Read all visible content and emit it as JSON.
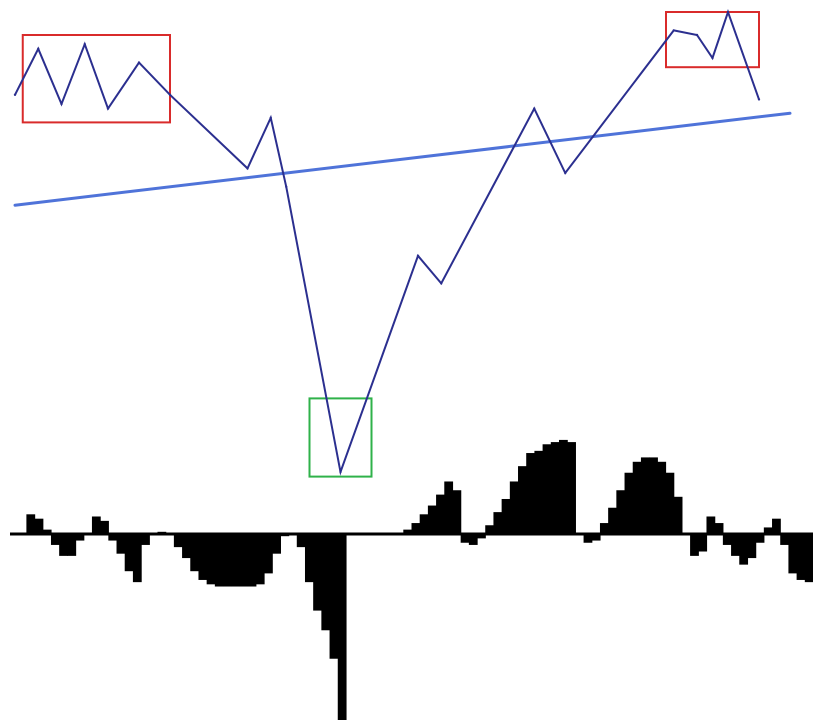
{
  "chart_data": [
    {
      "type": "line",
      "title": "",
      "xlabel": "",
      "ylabel": "",
      "grid": false,
      "legend": "none",
      "series": [
        {
          "color": "#2b2f8f",
          "points": [
            [
              0,
              82
            ],
            [
              3,
              92
            ],
            [
              6,
              80
            ],
            [
              9,
              93
            ],
            [
              12,
              79
            ],
            [
              16,
              89
            ],
            [
              20,
              82
            ],
            [
              30,
              66
            ],
            [
              33,
              77
            ],
            [
              35,
              62
            ],
            [
              42,
              0
            ],
            [
              52,
              47
            ],
            [
              55,
              41
            ],
            [
              67,
              79
            ],
            [
              71,
              65
            ],
            [
              85,
              96
            ],
            [
              88,
              95
            ],
            [
              90,
              90
            ],
            [
              92,
              100
            ],
            [
              96,
              81
            ]
          ]
        }
      ],
      "trendline": {
        "color": "#4f73d9",
        "start": [
          0,
          58
        ],
        "end": [
          100,
          78
        ]
      },
      "highlight_boxes": [
        {
          "kind": "top-left-zone",
          "color": "#d92b2b",
          "x0": 1,
          "x1": 20,
          "y0": 76,
          "y1": 95
        },
        {
          "kind": "bottom-zone",
          "color": "#2fb24a",
          "x0": 38,
          "x1": 46,
          "y0": -1,
          "y1": 16
        },
        {
          "kind": "top-right-zone",
          "color": "#d92b2b",
          "x0": 84,
          "x1": 96,
          "y0": 88,
          "y1": 100
        }
      ]
    },
    {
      "type": "area",
      "title": "",
      "xlabel": "",
      "ylabel": "",
      "grid": false,
      "legend": "none",
      "baseline": 0,
      "fill": "#000000",
      "values": [
        0,
        0,
        18,
        14,
        4,
        -10,
        -20,
        -20,
        -6,
        0,
        16,
        12,
        -6,
        -18,
        -34,
        -44,
        -10,
        0,
        2,
        0,
        -12,
        -22,
        -34,
        -42,
        -46,
        -48,
        -48,
        -48,
        -48,
        -48,
        -46,
        -36,
        -18,
        -2,
        0,
        -12,
        -44,
        -70,
        -88,
        -114,
        -170,
        0,
        0,
        0,
        0,
        0,
        0,
        0,
        4,
        10,
        18,
        26,
        36,
        48,
        40,
        -8,
        -10,
        -4,
        8,
        20,
        32,
        48,
        62,
        74,
        76,
        82,
        84,
        86,
        84,
        0,
        -8,
        -6,
        10,
        24,
        40,
        56,
        66,
        70,
        70,
        66,
        56,
        34,
        0,
        -20,
        -16,
        16,
        10,
        -10,
        -20,
        -28,
        -22,
        -8,
        6,
        14,
        -10,
        -36,
        -42,
        -44
      ]
    }
  ]
}
